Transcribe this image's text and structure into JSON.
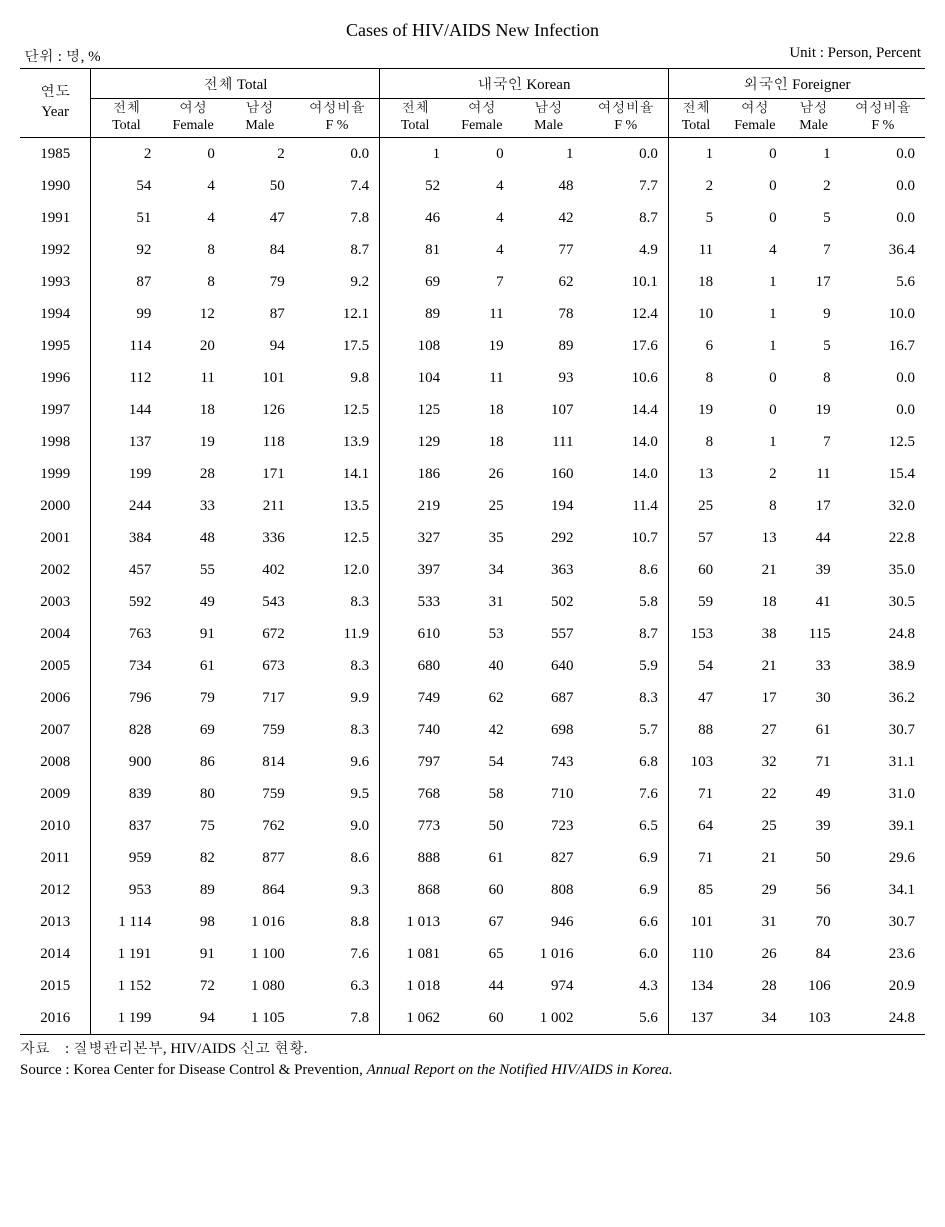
{
  "title": "Cases of HIV/AIDS New Infection",
  "unit_left": "단위 : 명, %",
  "unit_right": "Unit : Person, Percent",
  "header": {
    "year_kr": "연도",
    "year_en": "Year",
    "groups": [
      "전체 Total",
      "내국인 Korean",
      "외국인 Foreigner"
    ],
    "sub": {
      "total_kr": "전체",
      "total_en": "Total",
      "female_kr": "여성",
      "female_en": "Female",
      "male_kr": "남성",
      "male_en": "Male",
      "fpct_kr": "여성비율",
      "fpct_en": "F %"
    }
  },
  "rows": [
    {
      "year": "1985",
      "t": [
        "2",
        "0",
        "2",
        "0.0"
      ],
      "k": [
        "1",
        "0",
        "1",
        "0.0"
      ],
      "f": [
        "1",
        "0",
        "1",
        "0.0"
      ]
    },
    {
      "year": "1990",
      "t": [
        "54",
        "4",
        "50",
        "7.4"
      ],
      "k": [
        "52",
        "4",
        "48",
        "7.7"
      ],
      "f": [
        "2",
        "0",
        "2",
        "0.0"
      ]
    },
    {
      "year": "1991",
      "t": [
        "51",
        "4",
        "47",
        "7.8"
      ],
      "k": [
        "46",
        "4",
        "42",
        "8.7"
      ],
      "f": [
        "5",
        "0",
        "5",
        "0.0"
      ]
    },
    {
      "year": "1992",
      "t": [
        "92",
        "8",
        "84",
        "8.7"
      ],
      "k": [
        "81",
        "4",
        "77",
        "4.9"
      ],
      "f": [
        "11",
        "4",
        "7",
        "36.4"
      ]
    },
    {
      "year": "1993",
      "t": [
        "87",
        "8",
        "79",
        "9.2"
      ],
      "k": [
        "69",
        "7",
        "62",
        "10.1"
      ],
      "f": [
        "18",
        "1",
        "17",
        "5.6"
      ]
    },
    {
      "year": "1994",
      "t": [
        "99",
        "12",
        "87",
        "12.1"
      ],
      "k": [
        "89",
        "11",
        "78",
        "12.4"
      ],
      "f": [
        "10",
        "1",
        "9",
        "10.0"
      ]
    },
    {
      "year": "1995",
      "t": [
        "114",
        "20",
        "94",
        "17.5"
      ],
      "k": [
        "108",
        "19",
        "89",
        "17.6"
      ],
      "f": [
        "6",
        "1",
        "5",
        "16.7"
      ]
    },
    {
      "year": "1996",
      "t": [
        "112",
        "11",
        "101",
        "9.8"
      ],
      "k": [
        "104",
        "11",
        "93",
        "10.6"
      ],
      "f": [
        "8",
        "0",
        "8",
        "0.0"
      ]
    },
    {
      "year": "1997",
      "t": [
        "144",
        "18",
        "126",
        "12.5"
      ],
      "k": [
        "125",
        "18",
        "107",
        "14.4"
      ],
      "f": [
        "19",
        "0",
        "19",
        "0.0"
      ]
    },
    {
      "year": "1998",
      "t": [
        "137",
        "19",
        "118",
        "13.9"
      ],
      "k": [
        "129",
        "18",
        "111",
        "14.0"
      ],
      "f": [
        "8",
        "1",
        "7",
        "12.5"
      ]
    },
    {
      "year": "1999",
      "t": [
        "199",
        "28",
        "171",
        "14.1"
      ],
      "k": [
        "186",
        "26",
        "160",
        "14.0"
      ],
      "f": [
        "13",
        "2",
        "11",
        "15.4"
      ]
    },
    {
      "year": "2000",
      "t": [
        "244",
        "33",
        "211",
        "13.5"
      ],
      "k": [
        "219",
        "25",
        "194",
        "11.4"
      ],
      "f": [
        "25",
        "8",
        "17",
        "32.0"
      ]
    },
    {
      "year": "2001",
      "t": [
        "384",
        "48",
        "336",
        "12.5"
      ],
      "k": [
        "327",
        "35",
        "292",
        "10.7"
      ],
      "f": [
        "57",
        "13",
        "44",
        "22.8"
      ]
    },
    {
      "year": "2002",
      "t": [
        "457",
        "55",
        "402",
        "12.0"
      ],
      "k": [
        "397",
        "34",
        "363",
        "8.6"
      ],
      "f": [
        "60",
        "21",
        "39",
        "35.0"
      ]
    },
    {
      "year": "2003",
      "t": [
        "592",
        "49",
        "543",
        "8.3"
      ],
      "k": [
        "533",
        "31",
        "502",
        "5.8"
      ],
      "f": [
        "59",
        "18",
        "41",
        "30.5"
      ]
    },
    {
      "year": "2004",
      "t": [
        "763",
        "91",
        "672",
        "11.9"
      ],
      "k": [
        "610",
        "53",
        "557",
        "8.7"
      ],
      "f": [
        "153",
        "38",
        "115",
        "24.8"
      ]
    },
    {
      "year": "2005",
      "t": [
        "734",
        "61",
        "673",
        "8.3"
      ],
      "k": [
        "680",
        "40",
        "640",
        "5.9"
      ],
      "f": [
        "54",
        "21",
        "33",
        "38.9"
      ]
    },
    {
      "year": "2006",
      "t": [
        "796",
        "79",
        "717",
        "9.9"
      ],
      "k": [
        "749",
        "62",
        "687",
        "8.3"
      ],
      "f": [
        "47",
        "17",
        "30",
        "36.2"
      ]
    },
    {
      "year": "2007",
      "t": [
        "828",
        "69",
        "759",
        "8.3"
      ],
      "k": [
        "740",
        "42",
        "698",
        "5.7"
      ],
      "f": [
        "88",
        "27",
        "61",
        "30.7"
      ]
    },
    {
      "year": "2008",
      "t": [
        "900",
        "86",
        "814",
        "9.6"
      ],
      "k": [
        "797",
        "54",
        "743",
        "6.8"
      ],
      "f": [
        "103",
        "32",
        "71",
        "31.1"
      ]
    },
    {
      "year": "2009",
      "t": [
        "839",
        "80",
        "759",
        "9.5"
      ],
      "k": [
        "768",
        "58",
        "710",
        "7.6"
      ],
      "f": [
        "71",
        "22",
        "49",
        "31.0"
      ]
    },
    {
      "year": "2010",
      "t": [
        "837",
        "75",
        "762",
        "9.0"
      ],
      "k": [
        "773",
        "50",
        "723",
        "6.5"
      ],
      "f": [
        "64",
        "25",
        "39",
        "39.1"
      ]
    },
    {
      "year": "2011",
      "t": [
        "959",
        "82",
        "877",
        "8.6"
      ],
      "k": [
        "888",
        "61",
        "827",
        "6.9"
      ],
      "f": [
        "71",
        "21",
        "50",
        "29.6"
      ]
    },
    {
      "year": "2012",
      "t": [
        "953",
        "89",
        "864",
        "9.3"
      ],
      "k": [
        "868",
        "60",
        "808",
        "6.9"
      ],
      "f": [
        "85",
        "29",
        "56",
        "34.1"
      ]
    },
    {
      "year": "2013",
      "t": [
        "1 114",
        "98",
        "1 016",
        "8.8"
      ],
      "k": [
        "1 013",
        "67",
        "946",
        "6.6"
      ],
      "f": [
        "101",
        "31",
        "70",
        "30.7"
      ]
    },
    {
      "year": "2014",
      "t": [
        "1 191",
        "91",
        "1 100",
        "7.6"
      ],
      "k": [
        "1 081",
        "65",
        "1 016",
        "6.0"
      ],
      "f": [
        "110",
        "26",
        "84",
        "23.6"
      ]
    },
    {
      "year": "2015",
      "t": [
        "1 152",
        "72",
        "1 080",
        "6.3"
      ],
      "k": [
        "1 018",
        "44",
        "974",
        "4.3"
      ],
      "f": [
        "134",
        "28",
        "106",
        "20.9"
      ]
    },
    {
      "year": "2016",
      "t": [
        "1 199",
        "94",
        "1 105",
        "7.8"
      ],
      "k": [
        "1 062",
        "60",
        "1 002",
        "5.6"
      ],
      "f": [
        "137",
        "34",
        "103",
        "24.8"
      ]
    }
  ],
  "footnote": {
    "source_kr_label": "자료 :",
    "source_kr": "질병관리본부, HIV/AIDS 신고 현황.",
    "source_en_label": "Source :",
    "source_en_plain": "Korea Center for Disease Control & Prevention, ",
    "source_en_italic": "Annual Report on the Notified HIV/AIDS in Korea."
  },
  "style": {
    "border_color": "#000000",
    "bg": "#ffffff",
    "text_color": "#000000"
  }
}
